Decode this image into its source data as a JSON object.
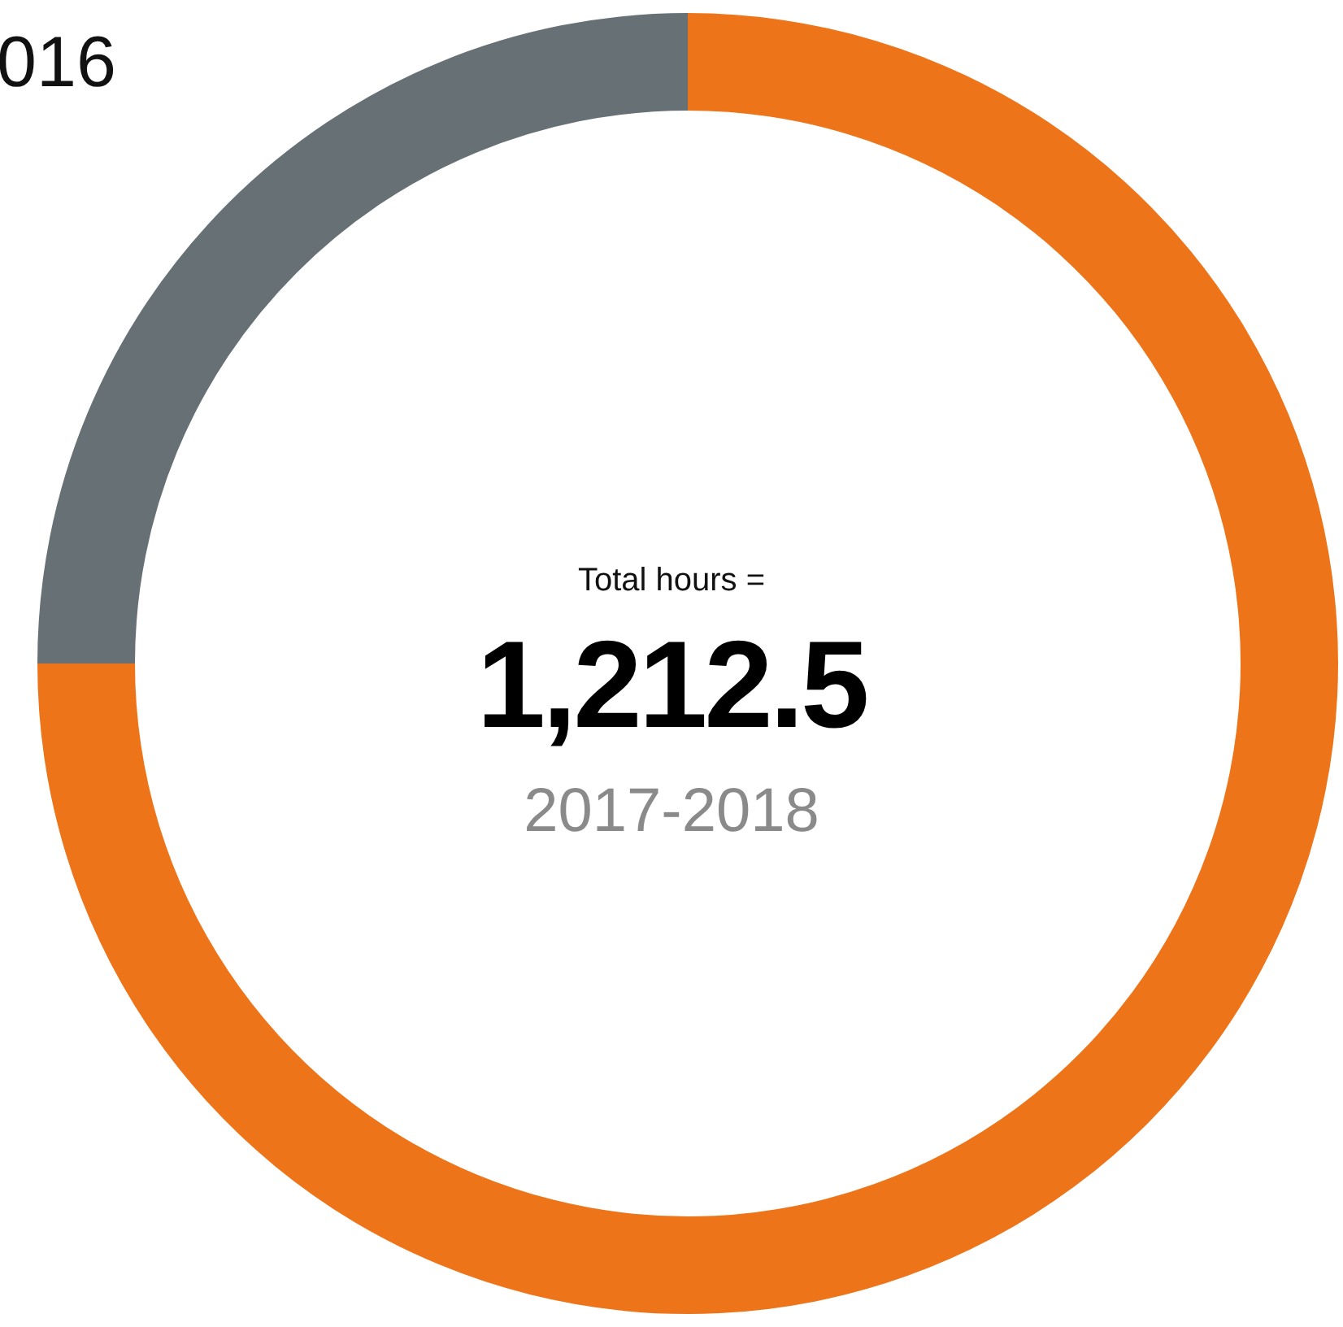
{
  "chart_data": {
    "type": "donut",
    "categories": [
      null,
      null
    ],
    "values": [
      75,
      25
    ],
    "colors": [
      "#ee741a",
      "#667075"
    ],
    "legend": false,
    "annotations": [
      "016",
      "Total hours =",
      "1,212.5",
      "2017-2018"
    ]
  }
}
